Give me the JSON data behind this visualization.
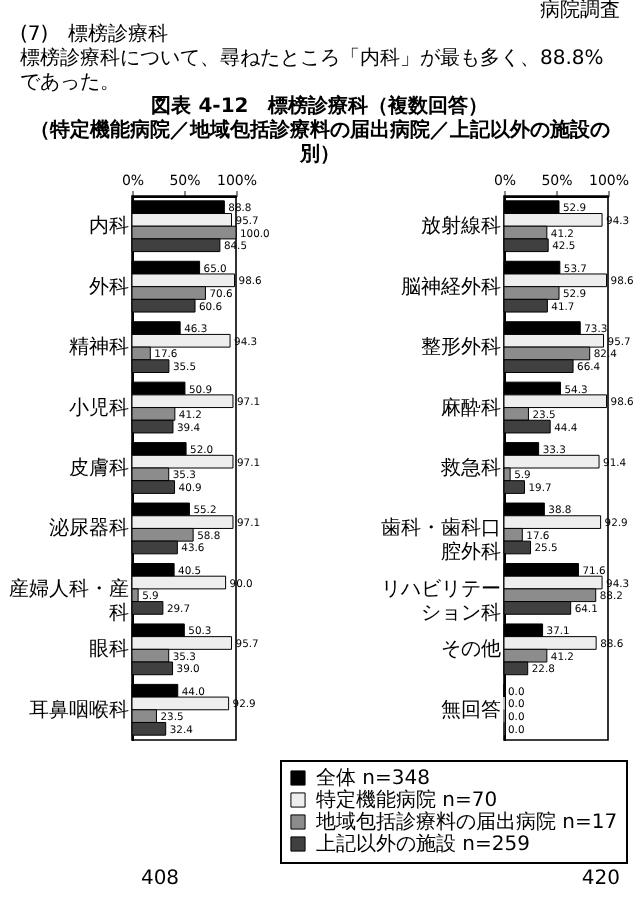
{
  "chart_data": [
    {
      "type": "bar",
      "orientation": "horizontal",
      "title": "図表 4-12　標榜診療科（複数回答）",
      "subtitle": "（特定機能病院／地域包括診療料の届出病院／上記以外の施設の別）",
      "annotations": [
        "病院調査",
        "(7)　標榜診療科",
        "標榜診療科について、尋ねたところ「内科」が最も多く、88.8%であった。"
      ],
      "categories": [
        "内科",
        "外科",
        "精神科",
        "小児科",
        "皮膚科",
        "泌尿器科",
        "産婦人科・産科",
        "眼科",
        "耳鼻咽喉科"
      ],
      "series": [
        {
          "color": "#000000",
          "values": [
            88.8,
            65.0,
            46.3,
            50.9,
            52.0,
            55.2,
            40.5,
            50.3,
            44.0
          ],
          "value_labels": [
            "88.8",
            "65.0",
            "46.3",
            "50.9",
            "52.0",
            "55.2",
            "40.5",
            "50.3",
            "44.0"
          ]
        },
        {
          "color": "#eeeeee",
          "values": [
            95.7,
            98.6,
            94.3,
            97.1,
            97.1,
            97.1,
            90.0,
            95.7,
            92.9
          ],
          "value_labels": [
            "95.7",
            "98.6",
            "94.3",
            "97.1",
            "97.1",
            "97.1",
            "90.0",
            "95.7",
            "92.9"
          ]
        },
        {
          "color": "#8c8c8c",
          "values": [
            100.0,
            70.6,
            17.6,
            41.2,
            35.3,
            58.8,
            5.9,
            35.3,
            23.5
          ],
          "value_labels": [
            "100.0",
            "70.6",
            "17.6",
            "41.2",
            "35.3",
            "58.8",
            "5.9",
            "35.3",
            "23.5"
          ]
        },
        {
          "color": "#404040",
          "values": [
            84.5,
            60.6,
            35.5,
            39.4,
            40.9,
            43.6,
            29.7,
            39.0,
            32.4
          ],
          "value_labels": [
            "84.5",
            "60.6",
            "35.5",
            "39.4",
            "40.9",
            "43.6",
            "29.7",
            "39.0",
            "32.4"
          ]
        }
      ],
      "xlim": [
        0,
        100
      ],
      "xticks": [
        {
          "value": 0,
          "label": "0%"
        },
        {
          "value": 50,
          "label": "50%"
        },
        {
          "value": 100,
          "label": "100%"
        }
      ]
    },
    {
      "type": "bar",
      "orientation": "horizontal",
      "annotations": [
        "408",
        "420"
      ],
      "categories": [
        "放射線科",
        "脳神経外科",
        "整形外科",
        "麻酔科",
        "救急科",
        "歯科・歯科口腔外科",
        "リハビリテーション科",
        "その他",
        "無回答"
      ],
      "series": [
        {
          "name": "全体 n=348",
          "color": "#000000",
          "values": [
            52.9,
            53.7,
            73.3,
            54.3,
            33.3,
            38.8,
            71.6,
            37.1,
            0.0
          ],
          "value_labels": [
            "52.9",
            "53.7",
            "73.3",
            "54.3",
            "33.3",
            "38.8",
            "71.6",
            "37.1",
            "0.0"
          ]
        },
        {
          "name": "特定機能病院 n=70",
          "color": "#eeeeee",
          "values": [
            94.3,
            98.6,
            95.7,
            98.6,
            91.4,
            92.9,
            94.3,
            88.6,
            0.0
          ],
          "value_labels": [
            "94.3",
            "98.6",
            "95.7",
            "98.6",
            "91.4",
            "92.9",
            "94.3",
            "88.6",
            "0.0"
          ]
        },
        {
          "name": "地域包括診療料の届出病院 n=17",
          "color": "#8c8c8c",
          "values": [
            41.2,
            52.9,
            82.4,
            23.5,
            5.9,
            17.6,
            88.2,
            41.2,
            0.0
          ],
          "value_labels": [
            "41.2",
            "52.9",
            "82.4",
            "23.5",
            "5.9",
            "17.6",
            "88.2",
            "41.2",
            "0.0"
          ]
        },
        {
          "name": "上記以外の施設 n=259",
          "color": "#404040",
          "values": [
            42.5,
            41.7,
            66.4,
            44.4,
            19.7,
            25.5,
            64.1,
            22.8,
            0.0
          ],
          "value_labels": [
            "42.5",
            "41.7",
            "66.4",
            "44.4",
            "19.7",
            "25.5",
            "64.1",
            "22.8",
            "0.0"
          ]
        }
      ],
      "xlim": [
        0,
        100
      ],
      "xticks": [
        {
          "value": 0,
          "label": "0%"
        },
        {
          "value": 50,
          "label": "50%"
        },
        {
          "value": 100,
          "label": "100%"
        }
      ],
      "legend": "bottom"
    }
  ]
}
